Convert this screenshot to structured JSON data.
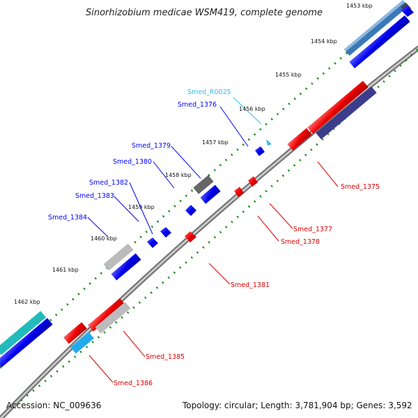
{
  "title": "Sinorhizobium medicae WSM419, complete genome",
  "accession": "Accession: NC_009636",
  "summary": "Topology: circular; Length: 3,781,904 bp; Genes: 3,592",
  "colors": {
    "forward_gene": "#0000ff",
    "reverse_gene": "#ff0000",
    "rna_gene": "#33bbee",
    "backbone": "#8c8c8c",
    "tick": "#1a8a1a"
  },
  "kbp_markers": [
    "1453 kbp",
    "1454 kbp",
    "1455 kbp",
    "1456 kbp",
    "1457 kbp",
    "1458 kbp",
    "1459 kbp",
    "1460 kbp",
    "1461 kbp",
    "1462 kbp"
  ],
  "gene_labels": {
    "forward": [
      "Smed_R0025",
      "Smed_1376",
      "Smed_1379",
      "Smed_1380",
      "Smed_1382",
      "Smed_1383",
      "Smed_1384"
    ],
    "reverse": [
      "Smed_1375",
      "Smed_1377",
      "Smed_1378",
      "Smed_1381",
      "Smed_1385",
      "Smed_1386"
    ]
  }
}
